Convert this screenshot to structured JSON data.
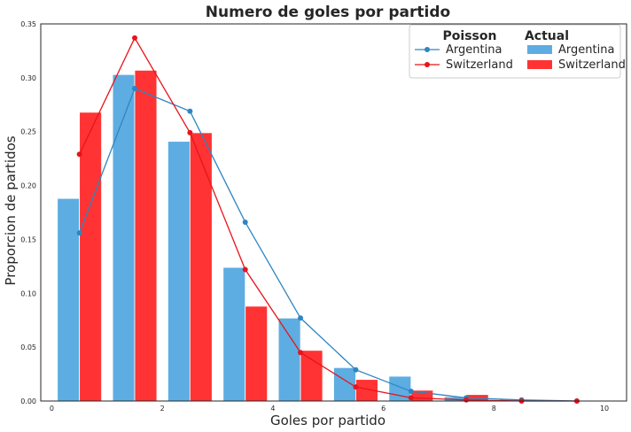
{
  "chart_data": {
    "type": "bar",
    "title": "Numero de goles por partido",
    "xlabel": "Goles por partido",
    "ylabel": "Proporcion de partidos",
    "xlim": [
      -0.2,
      10.4
    ],
    "ylim": [
      0,
      0.35
    ],
    "xticks": [
      0,
      2,
      4,
      6,
      8,
      10
    ],
    "xtick_labels": [
      "0",
      "2",
      "4",
      "6",
      "8",
      "10"
    ],
    "yticks": [
      0,
      0.05,
      0.1,
      0.15,
      0.2,
      0.25,
      0.3,
      0.35
    ],
    "ytick_labels": [
      "0.00",
      "0.05",
      "0.10",
      "0.15",
      "0.20",
      "0.25",
      "0.30",
      "0.35"
    ],
    "grid": false,
    "legend": {
      "placement": "top-right",
      "poisson_header": "Poisson",
      "actual_header": "Actual"
    },
    "bar_series": [
      {
        "name": "Argentina",
        "color": "#5dade2",
        "x_start": [
          0.1,
          1.1,
          2.1,
          3.1,
          4.1,
          5.1,
          6.1,
          7.1,
          8.1
        ],
        "values": [
          0.188,
          0.303,
          0.241,
          0.124,
          0.077,
          0.031,
          0.023,
          0.004,
          0.002
        ]
      },
      {
        "name": "Switzerland",
        "color": "#ff3333",
        "x_start": [
          0.5,
          1.5,
          2.5,
          3.5,
          4.5,
          5.5,
          6.5,
          7.5
        ],
        "values": [
          0.268,
          0.307,
          0.249,
          0.088,
          0.047,
          0.02,
          0.01,
          0.006
        ]
      }
    ],
    "line_series": [
      {
        "name": "Argentina",
        "color": "#2e86c1",
        "x": [
          0.5,
          1.5,
          2.5,
          3.5,
          4.5,
          5.5,
          6.5,
          7.5,
          8.5,
          9.5
        ],
        "values": [
          0.156,
          0.29,
          0.269,
          0.166,
          0.077,
          0.029,
          0.009,
          0.003,
          0.001,
          0.0
        ]
      },
      {
        "name": "Switzerland",
        "color": "#e8141b",
        "x": [
          0.5,
          1.5,
          2.5,
          3.5,
          4.5,
          5.5,
          6.5,
          7.5,
          8.5,
          9.5
        ],
        "values": [
          0.229,
          0.337,
          0.249,
          0.122,
          0.045,
          0.013,
          0.003,
          0.001,
          0.0,
          0.0
        ]
      }
    ]
  }
}
